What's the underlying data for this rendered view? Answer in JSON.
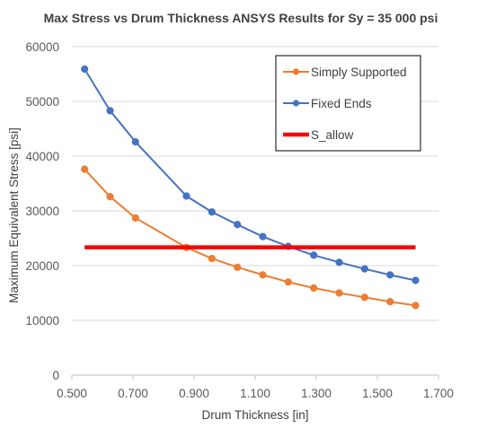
{
  "chart_data": {
    "type": "scatter",
    "title": "Max Stress vs Drum Thickness ANSYS Results for Sy = 35 000 psi",
    "xlabel": "Drum Thickness [in]",
    "ylabel": "Maximum Equivalent Stress [psi]",
    "xlim": [
      0.5,
      1.7
    ],
    "ylim": [
      0,
      60000
    ],
    "x_ticks": [
      "0.500",
      "0.700",
      "0.900",
      "1.100",
      "1.300",
      "1.500",
      "1.700"
    ],
    "y_ticks": [
      "0",
      "10000",
      "20000",
      "30000",
      "40000",
      "50000",
      "60000"
    ],
    "grid": "horizontal",
    "legend_position": "top-right",
    "series": [
      {
        "name": "Simply Supported",
        "color": "#ED7D31",
        "marker": "circle",
        "x": [
          0.5417,
          0.625,
          0.7083,
          0.875,
          0.9583,
          1.0417,
          1.125,
          1.2083,
          1.2917,
          1.375,
          1.4583,
          1.5417,
          1.625
        ],
        "y": [
          37600,
          32600,
          28700,
          23300,
          21300,
          19700,
          18300,
          17000,
          15900,
          15000,
          14200,
          13400,
          12700
        ]
      },
      {
        "name": "Fixed Ends",
        "color": "#4472C4",
        "marker": "circle",
        "x": [
          0.5417,
          0.625,
          0.7083,
          0.875,
          0.9583,
          1.0417,
          1.125,
          1.2083,
          1.2917,
          1.375,
          1.4583,
          1.5417,
          1.625
        ],
        "y": [
          55900,
          48300,
          42600,
          32700,
          29800,
          27500,
          25300,
          23500,
          21900,
          20600,
          19400,
          18300,
          17300
        ]
      },
      {
        "name": "S_allow",
        "color": "#FF0000",
        "marker": "none",
        "x": [
          0.5417,
          1.625
        ],
        "y": [
          23333,
          23333
        ]
      }
    ]
  }
}
